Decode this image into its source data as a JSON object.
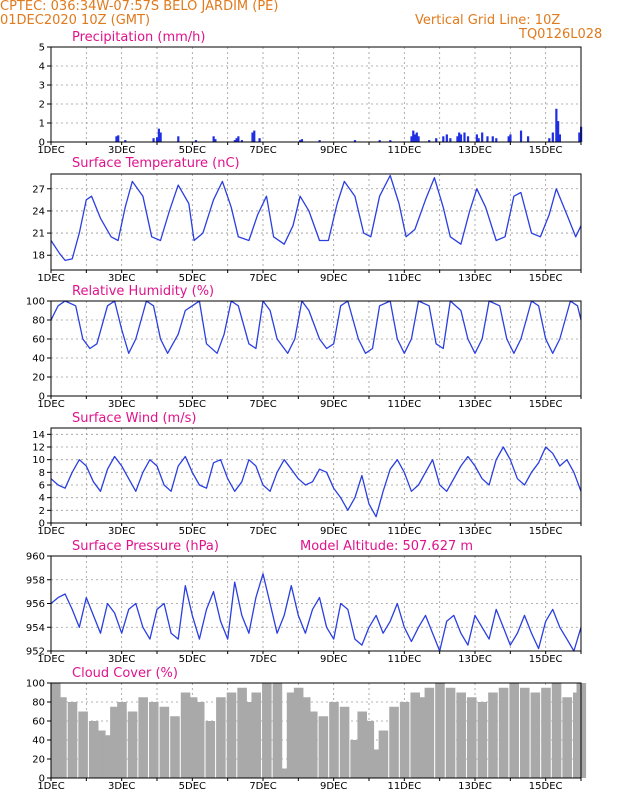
{
  "header": {
    "line1": "CPTEC:  036:34W-07:57S  BELO JARDIM (PE)",
    "line2": "01DEC2020 10Z (GMT)",
    "right1": "Vertical Grid Line: 10Z",
    "right2": "TQ0126L028"
  },
  "colors": {
    "header": "#e07a1c",
    "title": "#e0138c",
    "line": "#2b3fe0",
    "bar": "#1f2ee0",
    "cloud": "#a9a9a9",
    "grid": "#9a9a9a"
  },
  "chart_data": [
    {
      "id": "precip",
      "type": "bar",
      "title": "Precipitation (mm/h)",
      "xlabels": [
        "1DEC",
        "3DEC",
        "5DEC",
        "7DEC",
        "9DEC",
        "11DEC",
        "13DEC",
        "15DEC"
      ],
      "xlim": [
        0,
        15
      ],
      "ylim": [
        0,
        5
      ],
      "yticks": [
        0,
        1,
        2,
        3,
        4,
        5
      ],
      "x": [
        1.85,
        1.9,
        2.1,
        2.9,
        3.0,
        3.05,
        3.1,
        3.6,
        4.1,
        4.6,
        4.65,
        5.2,
        5.25,
        5.3,
        5.4,
        5.7,
        5.75,
        5.9,
        7.05,
        7.1,
        7.6,
        8.6,
        9.3,
        9.6,
        10.2,
        10.25,
        10.3,
        10.35,
        10.4,
        10.7,
        10.9,
        11.1,
        11.2,
        11.3,
        11.5,
        11.55,
        11.6,
        11.7,
        11.8,
        12.05,
        12.1,
        12.2,
        12.35,
        12.5,
        12.6,
        12.95,
        13.0,
        13.3,
        13.5,
        14.1,
        14.2,
        14.3,
        14.35,
        14.4,
        15.0,
        14.95
      ],
      "values": [
        0.3,
        0.35,
        0.1,
        0.2,
        0.25,
        0.7,
        0.5,
        0.3,
        0.1,
        0.3,
        0.15,
        0.1,
        0.2,
        0.3,
        0.1,
        0.5,
        0.6,
        0.2,
        0.1,
        0.15,
        0.1,
        0.1,
        0.1,
        0.1,
        0.3,
        0.6,
        0.4,
        0.5,
        0.3,
        0.1,
        0.2,
        0.3,
        0.4,
        0.2,
        0.3,
        0.5,
        0.4,
        0.5,
        0.3,
        0.4,
        0.2,
        0.5,
        0.3,
        0.3,
        0.2,
        0.3,
        0.4,
        0.6,
        0.3,
        0.2,
        0.5,
        1.75,
        1.1,
        0.4,
        0.8,
        0.5
      ]
    },
    {
      "id": "temp",
      "type": "line",
      "title": "Surface Temperature (nC)",
      "xlabels": [
        "1DEC",
        "3DEC",
        "5DEC",
        "7DEC",
        "9DEC",
        "11DEC",
        "13DEC",
        "15DEC"
      ],
      "xlim": [
        0,
        15
      ],
      "ylim": [
        16,
        29
      ],
      "yticks": [
        18,
        21,
        24,
        27
      ],
      "x": [
        0,
        0.25,
        0.4,
        0.6,
        0.8,
        1.0,
        1.15,
        1.4,
        1.7,
        1.9,
        2.1,
        2.3,
        2.6,
        2.85,
        3.1,
        3.35,
        3.6,
        3.9,
        4.05,
        4.3,
        4.6,
        4.85,
        5.1,
        5.3,
        5.6,
        5.85,
        6.1,
        6.3,
        6.6,
        6.85,
        7.05,
        7.3,
        7.6,
        7.85,
        8.1,
        8.3,
        8.6,
        8.85,
        9.05,
        9.3,
        9.6,
        9.85,
        10.05,
        10.3,
        10.6,
        10.85,
        11.1,
        11.3,
        11.6,
        11.85,
        12.05,
        12.3,
        12.6,
        12.85,
        13.1,
        13.3,
        13.6,
        13.85,
        14.1,
        14.3,
        14.6,
        14.85,
        15.0
      ],
      "values": [
        20.0,
        18.2,
        17.3,
        17.5,
        21.0,
        25.5,
        26.0,
        23.0,
        20.5,
        20.0,
        24.5,
        28.0,
        26.0,
        20.5,
        20.0,
        24.0,
        27.5,
        25.0,
        20.0,
        21.0,
        25.5,
        28.0,
        24.5,
        20.5,
        20.0,
        23.5,
        26.0,
        20.5,
        19.5,
        22.0,
        26.0,
        24.0,
        20.0,
        20.0,
        25.0,
        28.0,
        26.0,
        21.0,
        20.5,
        26.0,
        28.8,
        25.0,
        20.5,
        21.5,
        25.5,
        28.5,
        24.5,
        20.5,
        19.5,
        24.0,
        27.0,
        24.5,
        20.0,
        20.5,
        26.0,
        26.5,
        21.0,
        20.5,
        23.5,
        27.0,
        23.5,
        20.5,
        22.0
      ]
    },
    {
      "id": "rh",
      "type": "line",
      "title": "Relative Humidity (%)",
      "xlabels": [
        "1DEC",
        "3DEC",
        "5DEC",
        "7DEC",
        "9DEC",
        "11DEC",
        "13DEC",
        "15DEC"
      ],
      "xlim": [
        0,
        15
      ],
      "ylim": [
        0,
        100
      ],
      "yticks": [
        0,
        20,
        40,
        60,
        80,
        100
      ],
      "x": [
        0,
        0.2,
        0.4,
        0.7,
        0.9,
        1.1,
        1.3,
        1.6,
        1.8,
        2.0,
        2.2,
        2.4,
        2.7,
        2.9,
        3.1,
        3.3,
        3.6,
        3.8,
        4.0,
        4.2,
        4.4,
        4.7,
        4.9,
        5.1,
        5.3,
        5.6,
        5.8,
        6.0,
        6.2,
        6.4,
        6.7,
        6.9,
        7.1,
        7.3,
        7.6,
        7.8,
        8.0,
        8.2,
        8.4,
        8.7,
        8.9,
        9.1,
        9.3,
        9.6,
        9.8,
        10.0,
        10.2,
        10.4,
        10.7,
        10.9,
        11.1,
        11.3,
        11.6,
        11.8,
        12.0,
        12.2,
        12.4,
        12.7,
        12.9,
        13.1,
        13.3,
        13.6,
        13.8,
        14.0,
        14.2,
        14.4,
        14.7,
        14.9,
        15.0
      ],
      "values": [
        80,
        95,
        100,
        95,
        60,
        50,
        55,
        95,
        100,
        70,
        45,
        60,
        100,
        95,
        60,
        45,
        65,
        90,
        95,
        100,
        55,
        45,
        65,
        100,
        95,
        55,
        50,
        100,
        90,
        60,
        45,
        60,
        100,
        90,
        60,
        50,
        55,
        95,
        100,
        60,
        45,
        50,
        95,
        100,
        60,
        45,
        60,
        100,
        95,
        55,
        50,
        100,
        90,
        60,
        45,
        60,
        100,
        95,
        60,
        45,
        60,
        100,
        95,
        60,
        45,
        60,
        100,
        95,
        80
      ]
    },
    {
      "id": "wind",
      "type": "line",
      "title": "Surface Wind (m/s)",
      "xlabels": [
        "1DEC",
        "3DEC",
        "5DEC",
        "7DEC",
        "9DEC",
        "11DEC",
        "13DEC",
        "15DEC"
      ],
      "xlim": [
        0,
        15
      ],
      "ylim": [
        0,
        15
      ],
      "yticks": [
        0,
        2,
        4,
        6,
        8,
        10,
        12,
        14
      ],
      "x": [
        0,
        0.2,
        0.4,
        0.6,
        0.8,
        1.0,
        1.2,
        1.4,
        1.6,
        1.8,
        2.0,
        2.2,
        2.4,
        2.6,
        2.8,
        3.0,
        3.2,
        3.4,
        3.6,
        3.8,
        4.0,
        4.2,
        4.4,
        4.6,
        4.8,
        5.0,
        5.2,
        5.4,
        5.6,
        5.8,
        6.0,
        6.2,
        6.4,
        6.6,
        6.8,
        7.0,
        7.2,
        7.4,
        7.6,
        7.8,
        8.0,
        8.2,
        8.4,
        8.6,
        8.8,
        9.0,
        9.2,
        9.4,
        9.6,
        9.8,
        10.0,
        10.2,
        10.4,
        10.6,
        10.8,
        11.0,
        11.2,
        11.4,
        11.6,
        11.8,
        12.0,
        12.2,
        12.4,
        12.6,
        12.8,
        13.0,
        13.2,
        13.4,
        13.6,
        13.8,
        14.0,
        14.2,
        14.4,
        14.6,
        14.8,
        15.0
      ],
      "values": [
        7,
        6,
        5.5,
        8,
        10,
        9,
        6.5,
        5,
        8.5,
        10.5,
        9,
        7,
        5,
        8,
        10,
        9,
        6,
        5,
        9,
        10.5,
        8,
        6,
        5.5,
        9.5,
        10,
        7,
        5,
        6.5,
        10,
        9,
        6,
        5,
        8,
        10,
        8.5,
        7,
        6,
        6.5,
        8.5,
        8,
        5.5,
        4,
        2,
        4,
        7.5,
        3,
        1,
        5,
        8.5,
        10,
        8,
        5,
        6,
        8,
        10,
        6,
        5,
        7,
        9,
        10.5,
        9,
        7,
        6,
        10,
        12,
        10,
        7,
        6,
        8,
        9.5,
        12,
        11,
        9,
        10,
        8,
        5
      ]
    },
    {
      "id": "pres",
      "type": "line",
      "title": "Surface Pressure (hPa)",
      "annotation": "Model Altitude: 507.627 m",
      "xlabels": [
        "1DEC",
        "3DEC",
        "5DEC",
        "7DEC",
        "9DEC",
        "11DEC",
        "13DEC",
        "15DEC"
      ],
      "xlim": [
        0,
        15
      ],
      "ylim": [
        952,
        960
      ],
      "yticks": [
        952,
        954,
        956,
        958,
        960
      ],
      "x": [
        0,
        0.2,
        0.4,
        0.6,
        0.8,
        1.0,
        1.2,
        1.4,
        1.6,
        1.8,
        2.0,
        2.2,
        2.4,
        2.6,
        2.8,
        3.0,
        3.2,
        3.4,
        3.6,
        3.8,
        4.0,
        4.2,
        4.4,
        4.6,
        4.8,
        5.0,
        5.2,
        5.4,
        5.6,
        5.8,
        6.0,
        6.2,
        6.4,
        6.6,
        6.8,
        7.0,
        7.2,
        7.4,
        7.6,
        7.8,
        8.0,
        8.2,
        8.4,
        8.6,
        8.8,
        9.0,
        9.2,
        9.4,
        9.6,
        9.8,
        10.0,
        10.2,
        10.4,
        10.6,
        10.8,
        11.0,
        11.2,
        11.4,
        11.6,
        11.8,
        12.0,
        12.2,
        12.4,
        12.6,
        12.8,
        13.0,
        13.2,
        13.4,
        13.6,
        13.8,
        14.0,
        14.2,
        14.4,
        14.6,
        14.8,
        15.0
      ],
      "values": [
        956,
        956.5,
        956.8,
        955.5,
        954,
        956.5,
        955,
        953.5,
        956,
        955.2,
        953.5,
        955.5,
        956,
        954,
        953,
        955.5,
        956,
        953.5,
        953,
        957.5,
        955,
        953,
        955.5,
        957,
        954.5,
        953,
        957.8,
        955,
        953.5,
        956.5,
        958.5,
        956,
        953.5,
        955,
        957.5,
        955,
        953.5,
        955.5,
        956.5,
        954,
        953,
        956,
        955.5,
        953,
        952.5,
        954,
        955,
        953.5,
        954.5,
        956,
        954,
        952.8,
        954,
        955,
        953.5,
        952,
        954.5,
        955,
        953.5,
        952.5,
        955,
        954,
        953,
        955.5,
        954,
        952.5,
        953.5,
        955,
        953.5,
        952.2,
        954.5,
        955.5,
        954,
        953,
        952,
        954
      ]
    },
    {
      "id": "cloud",
      "type": "area",
      "title": "Cloud Cover (%)",
      "xlabels": [
        "1DEC",
        "3DEC",
        "5DEC",
        "7DEC",
        "9DEC",
        "11DEC",
        "13DEC",
        "15DEC"
      ],
      "xlim": [
        0,
        15
      ],
      "ylim": [
        0,
        100
      ],
      "yticks": [
        0,
        20,
        40,
        60,
        80,
        100
      ],
      "x": [
        0,
        0.3,
        0.6,
        0.9,
        1.2,
        1.4,
        1.5,
        1.6,
        1.8,
        2.0,
        2.3,
        2.6,
        2.9,
        3.2,
        3.5,
        3.8,
        4.0,
        4.2,
        4.5,
        4.8,
        5.1,
        5.4,
        5.6,
        5.8,
        6.1,
        6.4,
        6.6,
        6.8,
        7.0,
        7.2,
        7.4,
        7.7,
        8.0,
        8.3,
        8.6,
        8.8,
        9.0,
        9.2,
        9.4,
        9.7,
        10.0,
        10.3,
        10.5,
        10.7,
        11.0,
        11.3,
        11.6,
        11.9,
        12.2,
        12.5,
        12.8,
        13.1,
        13.4,
        13.7,
        14.0,
        14.3,
        14.6,
        14.9,
        15.0
      ],
      "values": [
        100,
        85,
        80,
        70,
        60,
        50,
        5,
        45,
        75,
        80,
        70,
        85,
        80,
        75,
        65,
        90,
        85,
        80,
        60,
        85,
        90,
        95,
        80,
        90,
        100,
        100,
        10,
        90,
        95,
        85,
        70,
        65,
        80,
        75,
        40,
        70,
        60,
        30,
        50,
        75,
        80,
        90,
        85,
        95,
        100,
        95,
        90,
        85,
        80,
        90,
        95,
        100,
        95,
        90,
        95,
        100,
        85,
        90,
        100
      ]
    }
  ]
}
